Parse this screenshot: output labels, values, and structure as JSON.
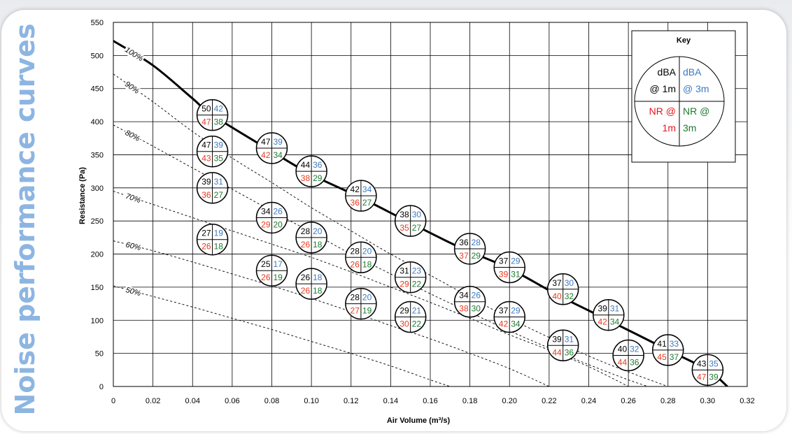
{
  "side_title": "Noise performance curves",
  "colors": {
    "dba_1m": "#000000",
    "dba_3m": "#3c7ac4",
    "nr_1m": "#e83a1e",
    "nr_3m": "#1e7a2e",
    "side_title": "#8db5e2"
  },
  "chart_data": {
    "type": "scatter",
    "xlabel": "Air Volume (m³/s)",
    "ylabel": "Resistance (Pa)",
    "xlim": [
      0,
      0.32
    ],
    "ylim": [
      0,
      550
    ],
    "x_ticks": [
      "0",
      "0.02",
      "0.04",
      "0.06",
      "0.08",
      "0.10",
      "0.12",
      "0.14",
      "0.16",
      "0.18",
      "0.20",
      "0.22",
      "0.24",
      "0.26",
      "0.28",
      "0.30",
      "0.32"
    ],
    "y_ticks": [
      "0",
      "50",
      "100",
      "150",
      "200",
      "250",
      "300",
      "350",
      "400",
      "450",
      "500",
      "550"
    ],
    "grid": true,
    "curves": [
      {
        "label": "100%",
        "style": "solid",
        "points": [
          [
            0,
            522
          ],
          [
            0.02,
            485
          ],
          [
            0.04,
            435
          ],
          [
            0.05,
            410
          ],
          [
            0.08,
            355
          ],
          [
            0.1,
            320
          ],
          [
            0.125,
            285
          ],
          [
            0.15,
            247
          ],
          [
            0.175,
            210
          ],
          [
            0.2,
            178
          ],
          [
            0.225,
            137
          ],
          [
            0.25,
            100
          ],
          [
            0.28,
            55
          ],
          [
            0.3,
            25
          ],
          [
            0.31,
            0
          ]
        ]
      },
      {
        "label": "90%",
        "style": "dashed",
        "points": [
          [
            0,
            472
          ],
          [
            0.02,
            430
          ],
          [
            0.04,
            385
          ],
          [
            0.06,
            345
          ],
          [
            0.08,
            308
          ],
          [
            0.1,
            270
          ],
          [
            0.12,
            235
          ],
          [
            0.14,
            200
          ],
          [
            0.16,
            168
          ],
          [
            0.18,
            135
          ],
          [
            0.2,
            103
          ],
          [
            0.22,
            74
          ],
          [
            0.24,
            46
          ],
          [
            0.26,
            22
          ],
          [
            0.28,
            0
          ]
        ]
      },
      {
        "label": "80%",
        "style": "dashed",
        "points": [
          [
            0,
            395
          ],
          [
            0.02,
            363
          ],
          [
            0.04,
            330
          ],
          [
            0.06,
            298
          ],
          [
            0.08,
            265
          ],
          [
            0.1,
            233
          ],
          [
            0.12,
            200
          ],
          [
            0.14,
            170
          ],
          [
            0.16,
            140
          ],
          [
            0.18,
            112
          ],
          [
            0.2,
            84
          ],
          [
            0.22,
            58
          ],
          [
            0.24,
            33
          ],
          [
            0.26,
            10
          ],
          [
            0.27,
            0
          ]
        ]
      },
      {
        "label": "70%",
        "style": "dashed",
        "points": [
          [
            0,
            295
          ],
          [
            0.02,
            275
          ],
          [
            0.04,
            255
          ],
          [
            0.06,
            235
          ],
          [
            0.08,
            215
          ],
          [
            0.1,
            195
          ],
          [
            0.12,
            173
          ],
          [
            0.14,
            150
          ],
          [
            0.16,
            127
          ],
          [
            0.18,
            103
          ],
          [
            0.2,
            78
          ],
          [
            0.22,
            55
          ],
          [
            0.24,
            30
          ],
          [
            0.26,
            0
          ]
        ]
      },
      {
        "label": "60%",
        "style": "dashed",
        "points": [
          [
            0,
            220
          ],
          [
            0.02,
            205
          ],
          [
            0.04,
            188
          ],
          [
            0.06,
            170
          ],
          [
            0.08,
            152
          ],
          [
            0.1,
            133
          ],
          [
            0.12,
            113
          ],
          [
            0.14,
            92
          ],
          [
            0.16,
            72
          ],
          [
            0.18,
            50
          ],
          [
            0.2,
            27
          ],
          [
            0.22,
            0
          ]
        ]
      },
      {
        "label": "50%",
        "style": "dashed",
        "points": [
          [
            0,
            152
          ],
          [
            0.02,
            136
          ],
          [
            0.04,
            120
          ],
          [
            0.06,
            103
          ],
          [
            0.08,
            86
          ],
          [
            0.1,
            68
          ],
          [
            0.12,
            50
          ],
          [
            0.14,
            31
          ],
          [
            0.16,
            10
          ],
          [
            0.17,
            0
          ]
        ]
      }
    ],
    "points": [
      {
        "x": 0.05,
        "y": 410,
        "dba_1m": "50",
        "dba_3m": "42",
        "nr_1m": "47",
        "nr_3m": "38"
      },
      {
        "x": 0.05,
        "y": 355,
        "dba_1m": "47",
        "dba_3m": "39",
        "nr_1m": "43",
        "nr_3m": "35"
      },
      {
        "x": 0.05,
        "y": 300,
        "dba_1m": "39",
        "dba_3m": "31",
        "nr_1m": "36",
        "nr_3m": "27"
      },
      {
        "x": 0.05,
        "y": 222,
        "dba_1m": "27",
        "dba_3m": "19",
        "nr_1m": "26",
        "nr_3m": "18"
      },
      {
        "x": 0.08,
        "y": 360,
        "dba_1m": "47",
        "dba_3m": "39",
        "nr_1m": "42",
        "nr_3m": "34"
      },
      {
        "x": 0.08,
        "y": 255,
        "dba_1m": "34",
        "dba_3m": "26",
        "nr_1m": "29",
        "nr_3m": "20"
      },
      {
        "x": 0.08,
        "y": 175,
        "dba_1m": "25",
        "dba_3m": "17",
        "nr_1m": "26",
        "nr_3m": "19"
      },
      {
        "x": 0.1,
        "y": 325,
        "dba_1m": "44",
        "dba_3m": "36",
        "nr_1m": "38",
        "nr_3m": "29"
      },
      {
        "x": 0.1,
        "y": 225,
        "dba_1m": "28",
        "dba_3m": "20",
        "nr_1m": "26",
        "nr_3m": "18"
      },
      {
        "x": 0.1,
        "y": 155,
        "dba_1m": "26",
        "dba_3m": "18",
        "nr_1m": "26",
        "nr_3m": "18"
      },
      {
        "x": 0.125,
        "y": 288,
        "dba_1m": "42",
        "dba_3m": "34",
        "nr_1m": "36",
        "nr_3m": "27"
      },
      {
        "x": 0.125,
        "y": 195,
        "dba_1m": "28",
        "dba_3m": "20",
        "nr_1m": "26",
        "nr_3m": "18"
      },
      {
        "x": 0.125,
        "y": 125,
        "dba_1m": "28",
        "dba_3m": "20",
        "nr_1m": "27",
        "nr_3m": "19"
      },
      {
        "x": 0.15,
        "y": 250,
        "dba_1m": "38",
        "dba_3m": "30",
        "nr_1m": "35",
        "nr_3m": "27"
      },
      {
        "x": 0.15,
        "y": 165,
        "dba_1m": "31",
        "dba_3m": "23",
        "nr_1m": "29",
        "nr_3m": "22"
      },
      {
        "x": 0.15,
        "y": 105,
        "dba_1m": "29",
        "dba_3m": "21",
        "nr_1m": "30",
        "nr_3m": "22"
      },
      {
        "x": 0.18,
        "y": 208,
        "dba_1m": "36",
        "dba_3m": "28",
        "nr_1m": "37",
        "nr_3m": "29"
      },
      {
        "x": 0.18,
        "y": 128,
        "dba_1m": "34",
        "dba_3m": "26",
        "nr_1m": "38",
        "nr_3m": "30"
      },
      {
        "x": 0.2,
        "y": 180,
        "dba_1m": "37",
        "dba_3m": "29",
        "nr_1m": "39",
        "nr_3m": "31"
      },
      {
        "x": 0.2,
        "y": 105,
        "dba_1m": "37",
        "dba_3m": "29",
        "nr_1m": "42",
        "nr_3m": "34"
      },
      {
        "x": 0.227,
        "y": 147,
        "dba_1m": "37",
        "dba_3m": "30",
        "nr_1m": "40",
        "nr_3m": "32"
      },
      {
        "x": 0.227,
        "y": 62,
        "dba_1m": "39",
        "dba_3m": "31",
        "nr_1m": "44",
        "nr_3m": "36"
      },
      {
        "x": 0.25,
        "y": 108,
        "dba_1m": "39",
        "dba_3m": "31",
        "nr_1m": "42",
        "nr_3m": "34"
      },
      {
        "x": 0.26,
        "y": 47,
        "dba_1m": "40",
        "dba_3m": "32",
        "nr_1m": "44",
        "nr_3m": "36"
      },
      {
        "x": 0.28,
        "y": 55,
        "dba_1m": "41",
        "dba_3m": "33",
        "nr_1m": "45",
        "nr_3m": "37"
      },
      {
        "x": 0.3,
        "y": 25,
        "dba_1m": "43",
        "dba_3m": "35",
        "nr_1m": "47",
        "nr_3m": "39"
      }
    ]
  },
  "key": {
    "title": "Key",
    "dba_1m_line1": "dBA",
    "dba_1m_line2": "@ 1m",
    "dba_3m_line1": "dBA",
    "dba_3m_line2": "@ 3m",
    "nr_1m_line1": "NR @",
    "nr_1m_line2": "1m",
    "nr_3m_line1": "NR @",
    "nr_3m_line2": "3m"
  }
}
